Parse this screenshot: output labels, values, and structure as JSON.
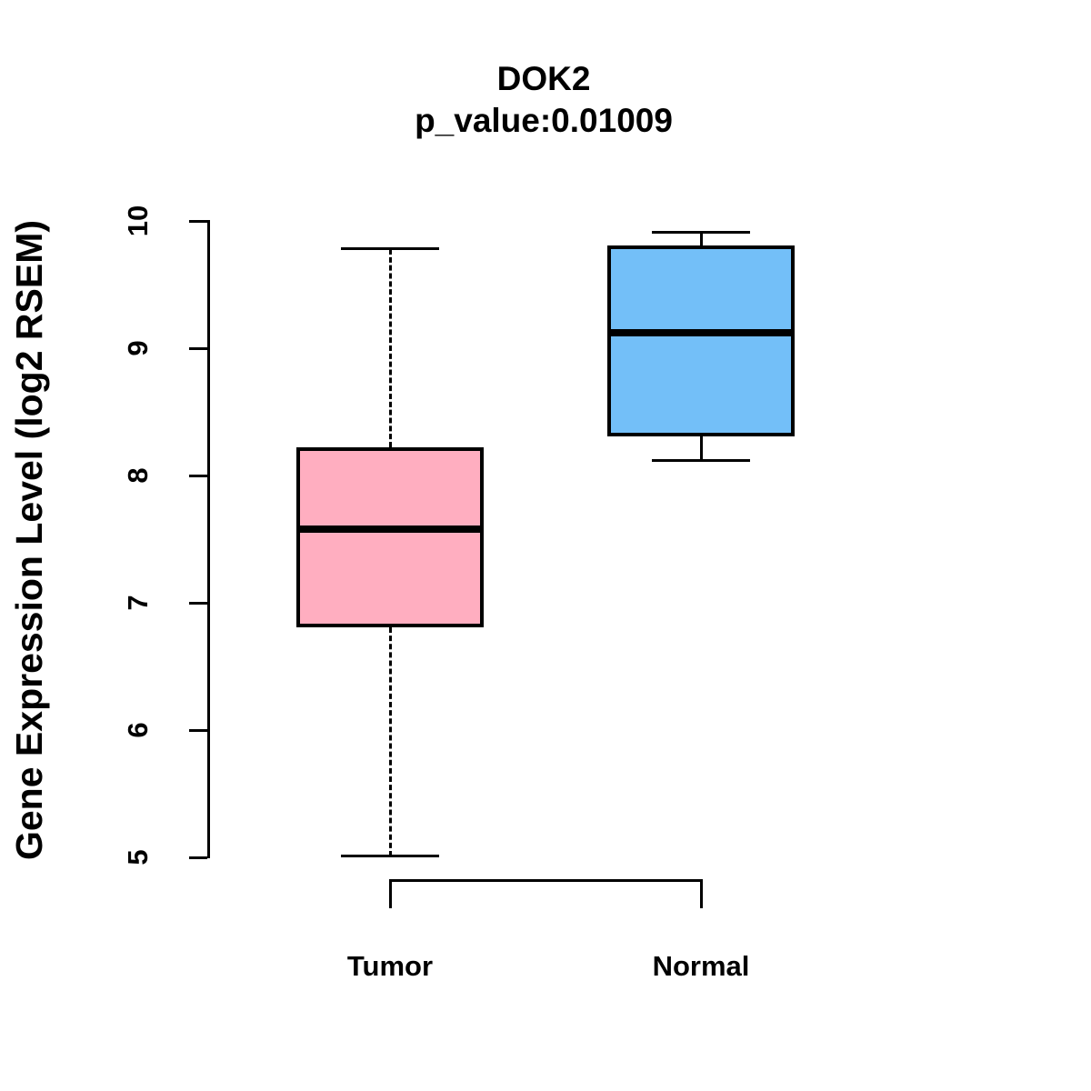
{
  "page": {
    "background": "#FFFFFF",
    "axis_color": "#000000"
  },
  "chart_data": {
    "type": "boxplot",
    "title": "DOK2",
    "subtitle": "p_value:0.01009",
    "ylabel": "Gene Expression Level (log2 RSEM)",
    "xlabel": "",
    "ylim": [
      5,
      10
    ],
    "yticks": [
      10,
      9,
      8,
      7,
      6,
      5
    ],
    "x_categories": [
      "Tumor",
      "Normal"
    ],
    "grid": false,
    "legend": "none",
    "groups": [
      {
        "label": "Tumor",
        "color": "#FFAEC0",
        "whisker_low": 5.01,
        "q1": 6.81,
        "median": 7.58,
        "q3": 8.22,
        "whisker_high": 9.78
      },
      {
        "label": "Normal",
        "color": "#73BFF8",
        "whisker_low": 8.12,
        "q1": 8.31,
        "median": 9.12,
        "q3": 9.81,
        "whisker_high": 9.91
      }
    ]
  }
}
